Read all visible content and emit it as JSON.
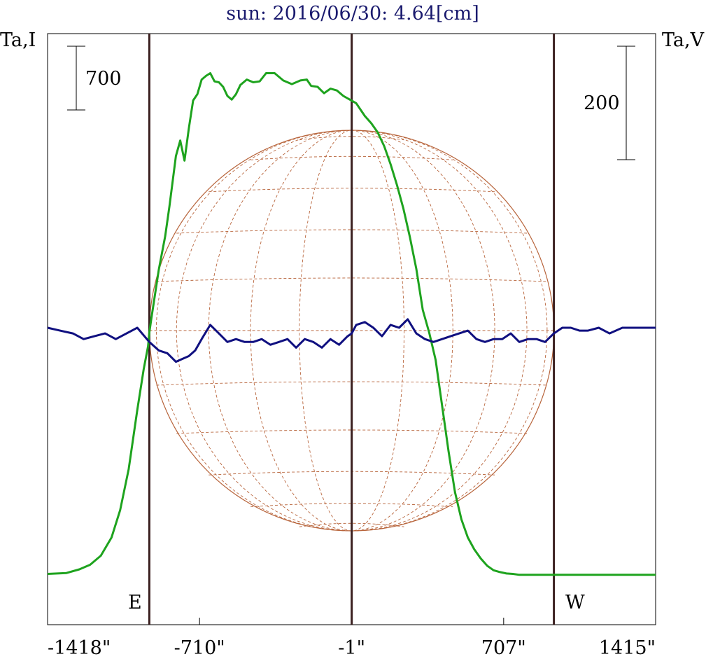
{
  "chart_data": {
    "type": "line",
    "title": "sun: 2016/06/30: 4.64[cm]",
    "left_axis_label": "Ta,I",
    "right_axis_label": "Ta,V",
    "scale_bar_left": "700",
    "scale_bar_right": "200",
    "x_tick_labels": [
      "-1418\"",
      "-710\"",
      "-1\"",
      "707\"",
      "1415\""
    ],
    "x_ticks": [
      -1418,
      -710,
      -1,
      707,
      1415
    ],
    "xlim": [
      -1418,
      1415
    ],
    "limb_markers": [
      -944,
      941
    ],
    "center_marker": -1,
    "east_label": "E",
    "west_label": "W",
    "colors": {
      "title": "#1a1a6e",
      "intensity": "#1ea31e",
      "polarization": "#101080",
      "markers": "#3a1f1f",
      "disk": "#b8653c",
      "frame": "#000000"
    },
    "series": [
      {
        "values_in_left_units": true,
        "x": [
          -1418,
          -1330,
          -1270,
          -1220,
          -1170,
          -1120,
          -1080,
          -1040,
          -1000,
          -970,
          -950,
          -944,
          -935,
          -900,
          -870,
          -850,
          -820,
          -800,
          -780,
          -760,
          -740,
          -720,
          -700,
          -680,
          -660,
          -640,
          -620,
          -600,
          -580,
          -560,
          -540,
          -520,
          -490,
          -460,
          -430,
          -400,
          -360,
          -320,
          -280,
          -240,
          -210,
          -190,
          -160,
          -130,
          -100,
          -70,
          -40,
          -10,
          20,
          40,
          60,
          90,
          120,
          150,
          180,
          210,
          240,
          270,
          300,
          330,
          360,
          390,
          420,
          450,
          480,
          510,
          540,
          570,
          600,
          630,
          660,
          690,
          720,
          750,
          780,
          800,
          820,
          840,
          860,
          880,
          900,
          920,
          941,
          950,
          970,
          1000,
          1030,
          1060,
          1100,
          1150,
          1200,
          1260,
          1320,
          1380,
          1415
        ],
        "y": [
          -2650,
          -2640,
          -2600,
          -2550,
          -2450,
          -2250,
          -1950,
          -1500,
          -850,
          -400,
          -150,
          0,
          150,
          690,
          1060,
          1390,
          1940,
          2110,
          1890,
          2240,
          2550,
          2620,
          2780,
          2820,
          2850,
          2760,
          2750,
          2700,
          2600,
          2560,
          2620,
          2720,
          2780,
          2750,
          2760,
          2850,
          2850,
          2770,
          2730,
          2770,
          2780,
          2710,
          2700,
          2630,
          2680,
          2660,
          2600,
          2560,
          2520,
          2450,
          2380,
          2300,
          2200,
          2050,
          1850,
          1620,
          1360,
          1050,
          700,
          250,
          0,
          -300,
          -800,
          -1300,
          -1750,
          -2050,
          -2250,
          -2380,
          -2480,
          -2560,
          -2610,
          -2630,
          -2645,
          -2650,
          -2660,
          -2660,
          -2660,
          -2660,
          -2660,
          -2660,
          -2660,
          -2660,
          -2660,
          -2660,
          -2660,
          -2660,
          -2660,
          -2660,
          -2660,
          -2660,
          -2660,
          -2660,
          -2660,
          -2660,
          -2660
        ]
      },
      {
        "x": [
          -1418,
          -1360,
          -1300,
          -1250,
          -1200,
          -1150,
          -1100,
          -1050,
          -1000,
          -944,
          -900,
          -860,
          -820,
          -790,
          -760,
          -730,
          -700,
          -660,
          -620,
          -580,
          -540,
          -500,
          -460,
          -420,
          -380,
          -340,
          -300,
          -260,
          -220,
          -180,
          -140,
          -100,
          -60,
          -20,
          -1,
          20,
          60,
          100,
          140,
          180,
          220,
          260,
          300,
          340,
          380,
          420,
          460,
          500,
          540,
          580,
          620,
          660,
          700,
          740,
          780,
          820,
          860,
          900,
          941,
          980,
          1020,
          1060,
          1100,
          1150,
          1200,
          1260,
          1320,
          1380,
          1415
        ],
        "y": [
          0,
          -5,
          -10,
          -20,
          -15,
          -10,
          -20,
          -10,
          0,
          -25,
          -40,
          -45,
          -60,
          -55,
          -50,
          -40,
          -20,
          5,
          -10,
          -25,
          -20,
          -25,
          -25,
          -20,
          -30,
          -25,
          -20,
          -35,
          -20,
          -25,
          -35,
          -20,
          -30,
          -15,
          -10,
          5,
          10,
          0,
          -15,
          5,
          0,
          15,
          -10,
          -20,
          -25,
          -20,
          -15,
          -10,
          -5,
          -20,
          -25,
          -20,
          -20,
          -10,
          -25,
          -20,
          -20,
          -25,
          -10,
          0,
          0,
          -5,
          -5,
          0,
          -10,
          0,
          0,
          0,
          0
        ]
      }
    ]
  }
}
